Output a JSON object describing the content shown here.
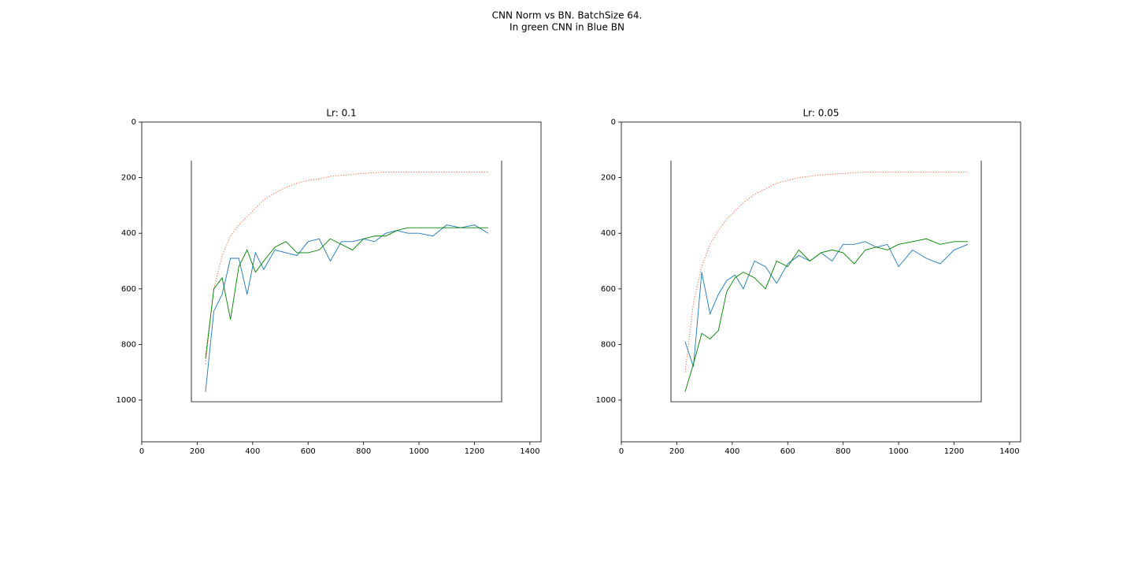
{
  "figure": {
    "title": "CNN Norm vs BN. BatchSize 64.",
    "subtitle": "In green CNN in Blue BN"
  },
  "chart_data": [
    {
      "type": "line",
      "title": "Lr: 0.1",
      "xlim": [
        0,
        1440
      ],
      "ylim": [
        1150,
        0
      ],
      "xticks": [
        0,
        200,
        400,
        600,
        800,
        1000,
        1200,
        1400
      ],
      "yticks": [
        0,
        200,
        400,
        600,
        800,
        1000
      ],
      "x": [
        230,
        260,
        290,
        320,
        350,
        380,
        410,
        440,
        480,
        520,
        560,
        600,
        640,
        680,
        720,
        760,
        800,
        840,
        880,
        920,
        960,
        1000,
        1050,
        1100,
        1150,
        1200,
        1250
      ],
      "series": [
        {
          "color": "#ff5a1f",
          "style": "dotted",
          "values": [
            870,
            600,
            480,
            410,
            370,
            340,
            310,
            280,
            255,
            235,
            220,
            210,
            205,
            195,
            192,
            188,
            185,
            182,
            180,
            180,
            180,
            180,
            180,
            180,
            180,
            180,
            180
          ]
        },
        {
          "color": "#1f77b4",
          "style": "solid",
          "values": [
            970,
            680,
            620,
            490,
            490,
            620,
            470,
            530,
            460,
            470,
            480,
            430,
            420,
            500,
            430,
            430,
            420,
            430,
            400,
            390,
            400,
            400,
            410,
            370,
            380,
            370,
            400
          ]
        },
        {
          "color": "#008000",
          "style": "solid",
          "values": [
            850,
            600,
            560,
            710,
            520,
            460,
            540,
            500,
            450,
            430,
            470,
            470,
            460,
            420,
            440,
            460,
            420,
            410,
            410,
            390,
            380,
            380,
            380,
            380,
            380,
            380,
            380
          ]
        }
      ]
    },
    {
      "type": "line",
      "title": "Lr: 0.05",
      "xlim": [
        0,
        1440
      ],
      "ylim": [
        1150,
        0
      ],
      "xticks": [
        0,
        200,
        400,
        600,
        800,
        1000,
        1200,
        1400
      ],
      "yticks": [
        0,
        200,
        400,
        600,
        800,
        1000
      ],
      "x": [
        230,
        260,
        290,
        320,
        350,
        380,
        410,
        440,
        480,
        520,
        560,
        600,
        640,
        680,
        720,
        760,
        800,
        840,
        880,
        920,
        960,
        1000,
        1050,
        1100,
        1150,
        1200,
        1250
      ],
      "series": [
        {
          "color": "#ff5a1f",
          "style": "dotted",
          "values": [
            900,
            650,
            520,
            440,
            390,
            350,
            320,
            290,
            260,
            240,
            220,
            210,
            200,
            195,
            190,
            188,
            185,
            182,
            180,
            180,
            180,
            180,
            180,
            180,
            180,
            180,
            180
          ]
        },
        {
          "color": "#1f77b4",
          "style": "solid",
          "values": [
            790,
            880,
            540,
            690,
            620,
            570,
            550,
            600,
            500,
            520,
            580,
            510,
            480,
            500,
            470,
            500,
            440,
            440,
            430,
            450,
            440,
            520,
            460,
            490,
            510,
            460,
            440
          ]
        },
        {
          "color": "#008000",
          "style": "solid",
          "values": [
            970,
            870,
            760,
            780,
            750,
            610,
            560,
            540,
            560,
            600,
            500,
            520,
            460,
            500,
            470,
            460,
            470,
            510,
            460,
            450,
            460,
            440,
            430,
            420,
            440,
            430,
            430
          ]
        }
      ]
    }
  ]
}
